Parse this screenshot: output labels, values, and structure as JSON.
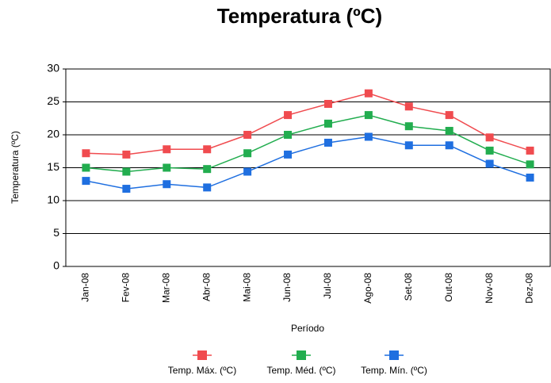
{
  "chart_data": {
    "type": "line",
    "title": "Temperatura (ºC)",
    "x_label": "Período",
    "y_label": "Temperatura (ºC)",
    "categories": [
      "Jan-08",
      "Fev-08",
      "Mar-08",
      "Abr-08",
      "Mai-08",
      "Jun-08",
      "Jul-08",
      "Ago-08",
      "Set-08",
      "Out-08",
      "Nov-08",
      "Dez-08"
    ],
    "series": [
      {
        "name": "Temp. Máx. (ºC)",
        "color": "#f04b4f",
        "values": [
          17.2,
          17.0,
          17.8,
          17.8,
          20.0,
          23.0,
          24.7,
          26.3,
          24.3,
          23.0,
          19.6,
          17.6
        ]
      },
      {
        "name": "Temp. Méd. (ºC)",
        "color": "#22ad4f",
        "values": [
          15.0,
          14.4,
          15.0,
          14.8,
          17.2,
          20.0,
          21.7,
          23.0,
          21.3,
          20.6,
          17.6,
          15.5
        ]
      },
      {
        "name": "Temp. Mín. (ºC)",
        "color": "#1f6fe0",
        "values": [
          13.0,
          11.8,
          12.5,
          12.0,
          14.4,
          17.0,
          18.8,
          19.7,
          18.4,
          18.4,
          15.6,
          13.5
        ]
      }
    ],
    "ylim": [
      0,
      30
    ],
    "yticks": [
      0,
      5,
      10,
      15,
      20,
      25,
      30
    ],
    "grid": true,
    "legend": "bottom"
  }
}
